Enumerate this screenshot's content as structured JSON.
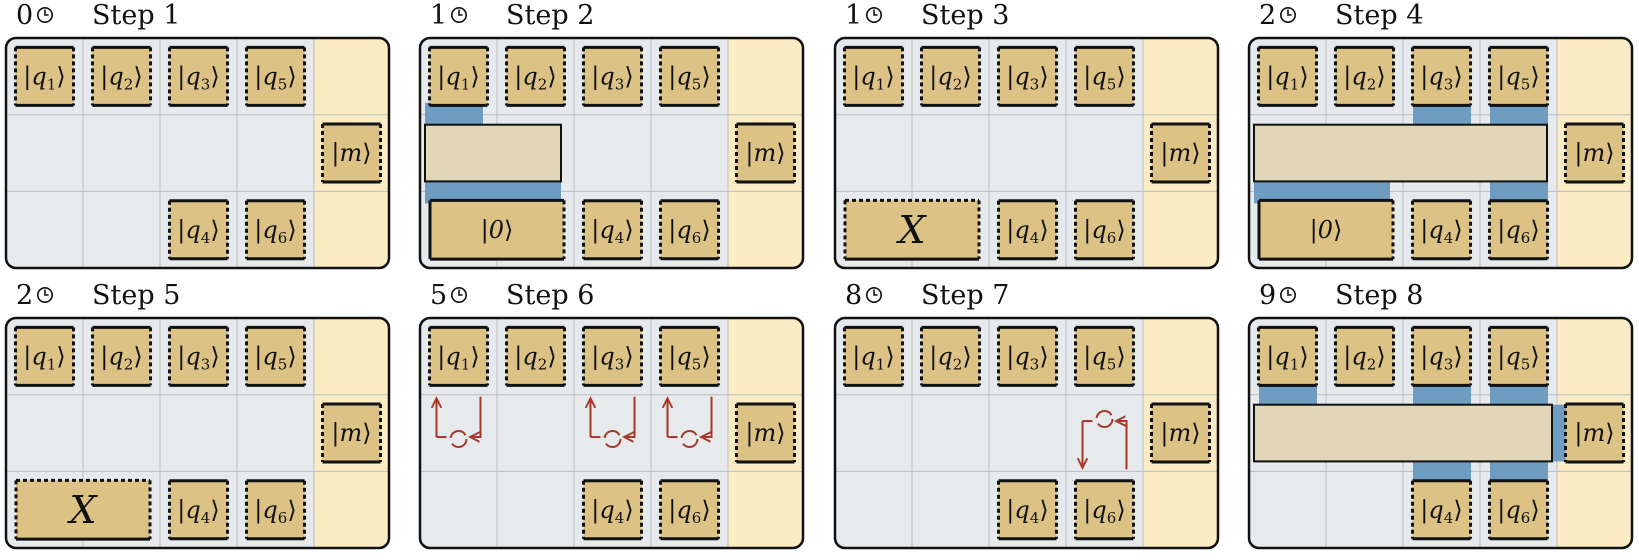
{
  "colors": {
    "panel_bg": "#e7eaec",
    "measure_bg": "#fbecc6",
    "qubit_fill": "#dcc285",
    "gate_fill": "#e2d6b8",
    "coupler_fill": "#6f9cc1",
    "arrow_red": "#a5382b",
    "grid_line": "#b9bdc1",
    "border": "#111111"
  },
  "clock_icon": "clock-icon",
  "rotation_icon": "rotation-arrow-icon",
  "panels": [
    {
      "id": "step-1",
      "time": "0",
      "title": "Step 1",
      "qubits": [
        {
          "label": "q1",
          "row": 0,
          "col": 0,
          "style": "dashed"
        },
        {
          "label": "q2",
          "row": 0,
          "col": 1,
          "style": "dashed"
        },
        {
          "label": "q3",
          "row": 0,
          "col": 2,
          "style": "dashed"
        },
        {
          "label": "q5",
          "row": 0,
          "col": 3,
          "style": "dashed"
        },
        {
          "label": "m",
          "row": 1,
          "col": 4,
          "style": "dashed"
        },
        {
          "label": "q4",
          "row": 2,
          "col": 2,
          "style": "dashed"
        },
        {
          "label": "q6",
          "row": 2,
          "col": 3,
          "style": "dashed"
        }
      ]
    },
    {
      "id": "step-2",
      "time": "1",
      "title": "Step 2",
      "qubits": [
        {
          "label": "q1",
          "row": 0,
          "col": 0,
          "style": "dashed"
        },
        {
          "label": "q2",
          "row": 0,
          "col": 1,
          "style": "dashed"
        },
        {
          "label": "q3",
          "row": 0,
          "col": 2,
          "style": "dashed"
        },
        {
          "label": "q5",
          "row": 0,
          "col": 3,
          "style": "dashed"
        },
        {
          "label": "m",
          "row": 1,
          "col": 4,
          "style": "dashed"
        },
        {
          "label": "q4",
          "row": 2,
          "col": 2,
          "style": "dashed"
        },
        {
          "label": "q6",
          "row": 2,
          "col": 3,
          "style": "dashed"
        }
      ],
      "ancilla": {
        "label": "0",
        "kind": "ket"
      },
      "gate": "bar-short",
      "couplers": [
        "q1",
        "ancilla"
      ]
    },
    {
      "id": "step-3",
      "time": "1",
      "title": "Step 3",
      "qubits": [
        {
          "label": "q1",
          "row": 0,
          "col": 0,
          "style": "dashed"
        },
        {
          "label": "q2",
          "row": 0,
          "col": 1,
          "style": "dashed"
        },
        {
          "label": "q3",
          "row": 0,
          "col": 2,
          "style": "dashed"
        },
        {
          "label": "q5",
          "row": 0,
          "col": 3,
          "style": "dashed"
        },
        {
          "label": "m",
          "row": 1,
          "col": 4,
          "style": "dashed"
        },
        {
          "label": "q4",
          "row": 2,
          "col": 2,
          "style": "dashed"
        },
        {
          "label": "q6",
          "row": 2,
          "col": 3,
          "style": "dashed"
        }
      ],
      "ancilla": {
        "label": "X",
        "kind": "x"
      }
    },
    {
      "id": "step-4",
      "time": "2",
      "title": "Step 4",
      "qubits": [
        {
          "label": "q1",
          "row": 0,
          "col": 0,
          "style": "dashed"
        },
        {
          "label": "q2",
          "row": 0,
          "col": 1,
          "style": "dashed"
        },
        {
          "label": "q3",
          "row": 0,
          "col": 2,
          "style": "dashed"
        },
        {
          "label": "q5",
          "row": 0,
          "col": 3,
          "style": "dashed"
        },
        {
          "label": "m",
          "row": 1,
          "col": 4,
          "style": "dashed"
        },
        {
          "label": "q4",
          "row": 2,
          "col": 2,
          "style": "dashed"
        },
        {
          "label": "q6",
          "row": 2,
          "col": 3,
          "style": "dashed"
        }
      ],
      "ancilla": {
        "label": "0",
        "kind": "ket"
      },
      "gate": "bar-long",
      "couplers": [
        "q3",
        "q5",
        "ancilla",
        "q6"
      ]
    },
    {
      "id": "step-5",
      "time": "2",
      "title": "Step 5",
      "qubits": [
        {
          "label": "q1",
          "row": 0,
          "col": 0,
          "style": "dashed"
        },
        {
          "label": "q2",
          "row": 0,
          "col": 1,
          "style": "dashed"
        },
        {
          "label": "q3",
          "row": 0,
          "col": 2,
          "style": "dashed"
        },
        {
          "label": "q5",
          "row": 0,
          "col": 3,
          "style": "dashed"
        },
        {
          "label": "m",
          "row": 1,
          "col": 4,
          "style": "dashed"
        },
        {
          "label": "q4",
          "row": 2,
          "col": 2,
          "style": "dashed"
        },
        {
          "label": "q6",
          "row": 2,
          "col": 3,
          "style": "dashed"
        }
      ],
      "ancilla": {
        "label": "X",
        "kind": "x"
      }
    },
    {
      "id": "step-6",
      "time": "5",
      "title": "Step 6",
      "qubits": [
        {
          "label": "q1",
          "row": 0,
          "col": 0,
          "style": "dashed"
        },
        {
          "label": "q2",
          "row": 0,
          "col": 1,
          "style": "dashed"
        },
        {
          "label": "q3",
          "row": 0,
          "col": 2,
          "style": "dashed"
        },
        {
          "label": "q5",
          "row": 0,
          "col": 3,
          "style": "dashed"
        },
        {
          "label": "m",
          "row": 1,
          "col": 4,
          "style": "dashed"
        },
        {
          "label": "q4",
          "row": 2,
          "col": 2,
          "style": "dashed"
        },
        {
          "label": "q6",
          "row": 2,
          "col": 3,
          "style": "dashed"
        }
      ],
      "swaps": [
        {
          "row": 1,
          "col": 0,
          "dir": "down"
        },
        {
          "row": 1,
          "col": 2,
          "dir": "down"
        },
        {
          "row": 1,
          "col": 3,
          "dir": "down"
        }
      ]
    },
    {
      "id": "step-7",
      "time": "8",
      "title": "Step 7",
      "qubits": [
        {
          "label": "q1",
          "row": 0,
          "col": 0,
          "style": "dashed"
        },
        {
          "label": "q2",
          "row": 0,
          "col": 1,
          "style": "dashed"
        },
        {
          "label": "q3",
          "row": 0,
          "col": 2,
          "style": "dashed"
        },
        {
          "label": "q5",
          "row": 0,
          "col": 3,
          "style": "dashed"
        },
        {
          "label": "m",
          "row": 1,
          "col": 4,
          "style": "dashed"
        },
        {
          "label": "q4",
          "row": 2,
          "col": 2,
          "style": "dashed"
        },
        {
          "label": "q6",
          "row": 2,
          "col": 3,
          "style": "dashed"
        }
      ],
      "swaps": [
        {
          "row": 1,
          "col": 3,
          "dir": "up"
        }
      ]
    },
    {
      "id": "step-8",
      "time": "9",
      "title": "Step 8",
      "qubits": [
        {
          "label": "q1",
          "row": 0,
          "col": 0,
          "style": "dashed"
        },
        {
          "label": "q2",
          "row": 0,
          "col": 1,
          "style": "dashed"
        },
        {
          "label": "q3",
          "row": 0,
          "col": 2,
          "style": "dashed"
        },
        {
          "label": "q5",
          "row": 0,
          "col": 3,
          "style": "dashed"
        },
        {
          "label": "m",
          "row": 1,
          "col": 4,
          "style": "dashed"
        },
        {
          "label": "q4",
          "row": 2,
          "col": 2,
          "style": "dashed"
        },
        {
          "label": "q6",
          "row": 2,
          "col": 3,
          "style": "dashed"
        }
      ],
      "gate": "bar-full",
      "couplers": [
        "q1",
        "q3",
        "q5",
        "q4",
        "q6",
        "m"
      ]
    }
  ]
}
